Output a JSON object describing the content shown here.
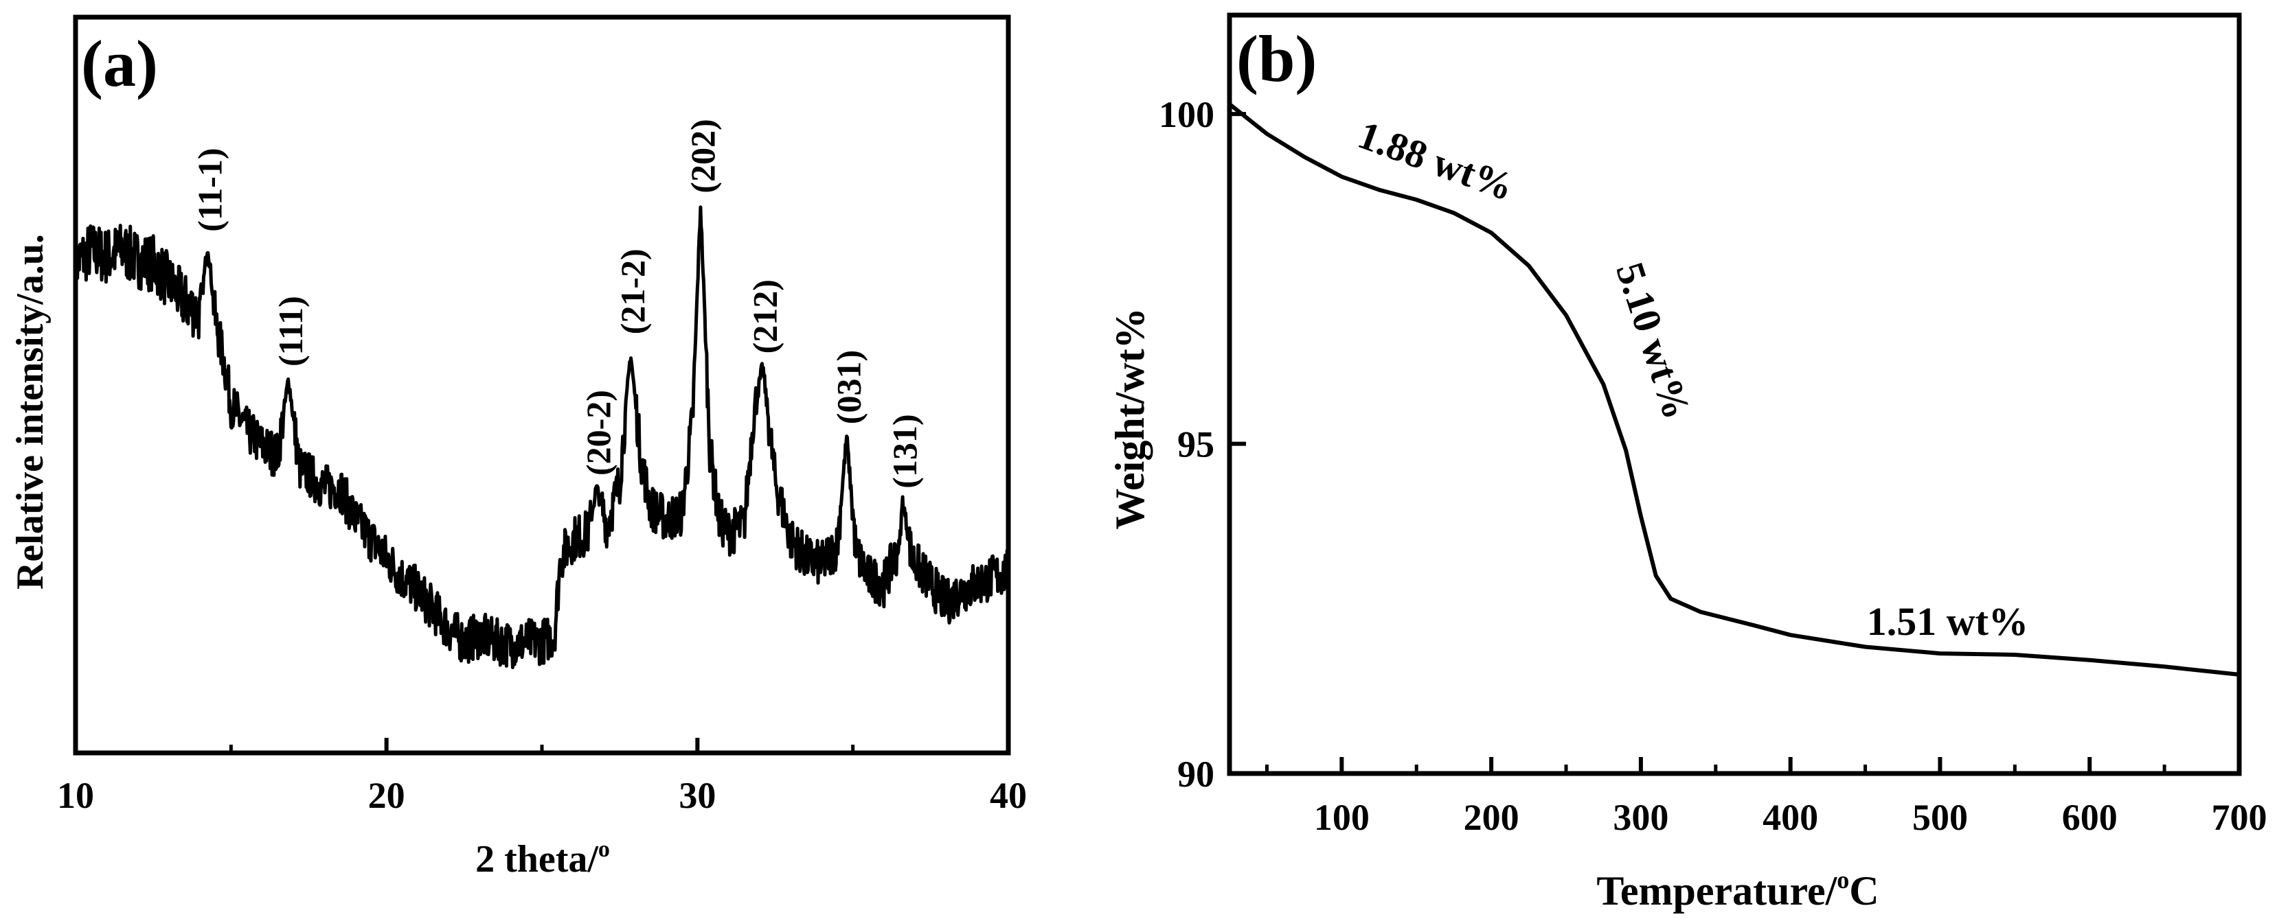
{
  "chart_data": [
    {
      "panel_label": "(a)",
      "type": "line",
      "title": "",
      "xlabel": "2 theta/",
      "xlabel_sup": "o",
      "ylabel": "Relative intensity/a.u.",
      "xlim": [
        10,
        40
      ],
      "ylim": [
        0,
        100
      ],
      "xticks": [
        10,
        20,
        30,
        40
      ],
      "xtick_labels": [
        "10",
        "20",
        "30",
        "40"
      ],
      "yticks_shown": false,
      "grid": false,
      "series": [
        {
          "name": "XRD pattern",
          "color": "#000000",
          "points": [
            [
              10.0,
              74
            ],
            [
              10.5,
              76
            ],
            [
              11.0,
              75
            ],
            [
              11.5,
              76
            ],
            [
              12.0,
              74.5
            ],
            [
              12.5,
              74
            ],
            [
              13.0,
              71
            ],
            [
              13.5,
              68
            ],
            [
              14.0,
              66
            ],
            [
              14.25,
              77
            ],
            [
              14.5,
              65
            ],
            [
              14.8,
              58
            ],
            [
              15.0,
              52
            ],
            [
              15.5,
              48
            ],
            [
              16.0,
              45.5
            ],
            [
              16.5,
              44
            ],
            [
              16.85,
              56
            ],
            [
              17.2,
              42
            ],
            [
              17.5,
              41
            ],
            [
              18.0,
              39
            ],
            [
              18.5,
              39
            ],
            [
              19.0,
              34
            ],
            [
              19.5,
              31
            ],
            [
              20.0,
              28
            ],
            [
              20.5,
              25
            ],
            [
              21.0,
              23
            ],
            [
              21.5,
              20
            ],
            [
              22.0,
              17
            ],
            [
              22.5,
              15
            ],
            [
              23.0,
              16
            ],
            [
              23.5,
              15
            ],
            [
              24.0,
              14.5
            ],
            [
              24.5,
              15
            ],
            [
              25.0,
              15
            ],
            [
              25.4,
              16
            ],
            [
              25.6,
              28
            ],
            [
              26.0,
              31
            ],
            [
              26.5,
              32
            ],
            [
              26.75,
              39
            ],
            [
              27.1,
              33
            ],
            [
              27.5,
              40
            ],
            [
              27.85,
              60
            ],
            [
              28.2,
              43
            ],
            [
              28.5,
              36
            ],
            [
              29.0,
              34
            ],
            [
              29.5,
              35
            ],
            [
              29.85,
              50
            ],
            [
              30.1,
              83
            ],
            [
              30.4,
              45
            ],
            [
              30.7,
              34
            ],
            [
              31.0,
              32
            ],
            [
              31.5,
              33
            ],
            [
              31.8,
              50
            ],
            [
              32.1,
              58
            ],
            [
              32.5,
              40
            ],
            [
              33.0,
              31
            ],
            [
              33.5,
              28
            ],
            [
              34.0,
              27
            ],
            [
              34.5,
              30
            ],
            [
              34.8,
              47
            ],
            [
              35.1,
              29
            ],
            [
              35.5,
              25
            ],
            [
              36.0,
              24
            ],
            [
              36.5,
              30
            ],
            [
              36.6,
              37
            ],
            [
              36.9,
              28
            ],
            [
              37.5,
              24
            ],
            [
              38.0,
              21
            ],
            [
              38.5,
              23
            ],
            [
              39.0,
              24
            ],
            [
              39.5,
              25
            ],
            [
              40.0,
              26
            ]
          ]
        }
      ],
      "annotations": [
        {
          "text": "(11-1)",
          "x": 14.25,
          "y": 78
        },
        {
          "text": "(111)",
          "x": 16.85,
          "y": 57
        },
        {
          "text": "(20-2)",
          "x": 26.75,
          "y": 40
        },
        {
          "text": "(21-2)",
          "x": 27.85,
          "y": 62
        },
        {
          "text": "(202)",
          "x": 30.1,
          "y": 84
        },
        {
          "text": "(212)",
          "x": 32.1,
          "y": 59
        },
        {
          "text": "(031)",
          "x": 34.8,
          "y": 48
        },
        {
          "text": "(131)",
          "x": 36.6,
          "y": 38
        }
      ]
    },
    {
      "panel_label": "(b)",
      "type": "line",
      "title": "",
      "xlabel": "Temperature/",
      "xlabel_sup": "o",
      "xlabel_tail": "C",
      "ylabel": "Weight/wt%",
      "xlim": [
        25,
        700
      ],
      "ylim": [
        90,
        101.5
      ],
      "xticks": [
        100,
        200,
        300,
        400,
        500,
        600,
        700
      ],
      "xtick_labels": [
        "100",
        "200",
        "300",
        "400",
        "500",
        "600",
        "700"
      ],
      "yticks": [
        90,
        95,
        100
      ],
      "ytick_labels": [
        "90",
        "95",
        "100"
      ],
      "grid": false,
      "series": [
        {
          "name": "TGA curve",
          "color": "#000000",
          "points": [
            [
              25,
              100.15
            ],
            [
              50,
              99.7
            ],
            [
              75,
              99.35
            ],
            [
              100,
              99.05
            ],
            [
              125,
              98.85
            ],
            [
              150,
              98.7
            ],
            [
              175,
              98.5
            ],
            [
              200,
              98.2
            ],
            [
              225,
              97.7
            ],
            [
              250,
              96.95
            ],
            [
              275,
              95.9
            ],
            [
              290,
              94.9
            ],
            [
              300,
              93.9
            ],
            [
              310,
              93.0
            ],
            [
              320,
              92.65
            ],
            [
              340,
              92.45
            ],
            [
              375,
              92.25
            ],
            [
              400,
              92.1
            ],
            [
              450,
              91.92
            ],
            [
              500,
              91.82
            ],
            [
              550,
              91.8
            ],
            [
              600,
              91.72
            ],
            [
              650,
              91.62
            ],
            [
              700,
              91.5
            ]
          ]
        }
      ],
      "annotations": [
        {
          "text": "1.88 wt%",
          "x": 160,
          "y": 99.1
        },
        {
          "text": "5.10 wt%",
          "x": 300,
          "y": 96.5
        },
        {
          "text": "1.51 wt%",
          "x": 505,
          "y": 92.1
        }
      ]
    }
  ]
}
